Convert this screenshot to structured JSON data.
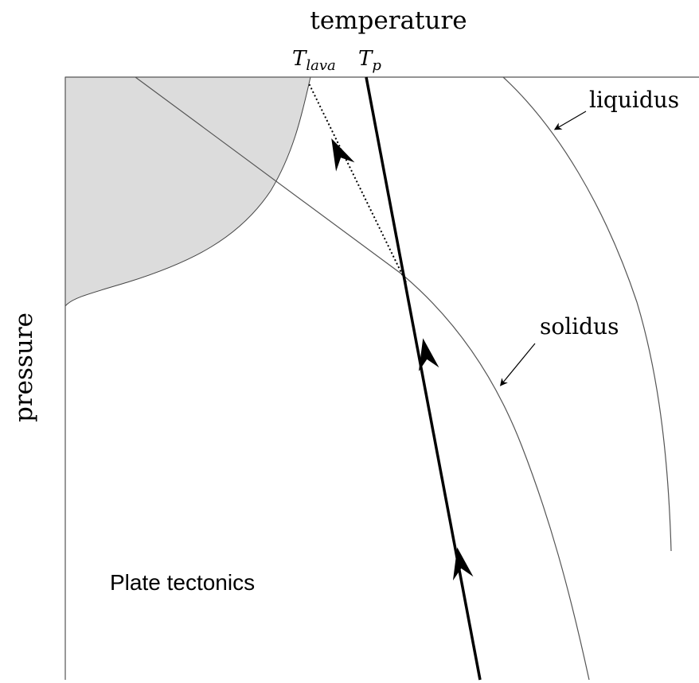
{
  "axes": {
    "x_label": "temperature",
    "y_label": "pressure"
  },
  "markers": [
    {
      "symbol": "T",
      "subscript": "lava"
    },
    {
      "symbol": "T",
      "subscript": "p"
    }
  ],
  "curves": {
    "liquidus": "liquidus",
    "solidus": "solidus"
  },
  "regime": "Plate tectonics"
}
